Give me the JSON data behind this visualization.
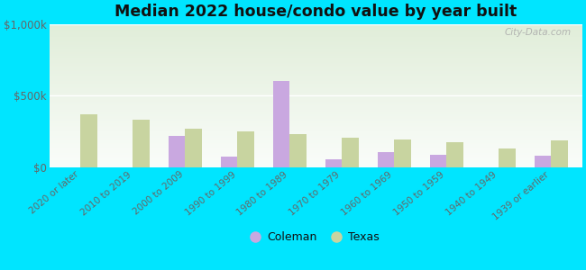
{
  "title": "Median 2022 house/condo value by year built",
  "categories": [
    "2020 or later",
    "2010 to 2019",
    "2000 to 2009",
    "1990 to 1999",
    "1980 to 1989",
    "1970 to 1979",
    "1960 to 1969",
    "1950 to 1959",
    "1940 to 1949",
    "1939 or earlier"
  ],
  "coleman_values": [
    0,
    0,
    220000,
    75000,
    600000,
    55000,
    105000,
    85000,
    0,
    80000
  ],
  "texas_values": [
    370000,
    330000,
    270000,
    250000,
    235000,
    205000,
    195000,
    175000,
    130000,
    185000
  ],
  "coleman_color": "#c9a8e0",
  "texas_color": "#c8d4a0",
  "background_outer": "#00e5ff",
  "ylim": [
    0,
    1000000
  ],
  "ytick_labels": [
    "$0",
    "$500k",
    "$1,000k"
  ],
  "watermark": "City-Data.com",
  "legend_labels": [
    "Coleman",
    "Texas"
  ],
  "bar_width": 0.32
}
